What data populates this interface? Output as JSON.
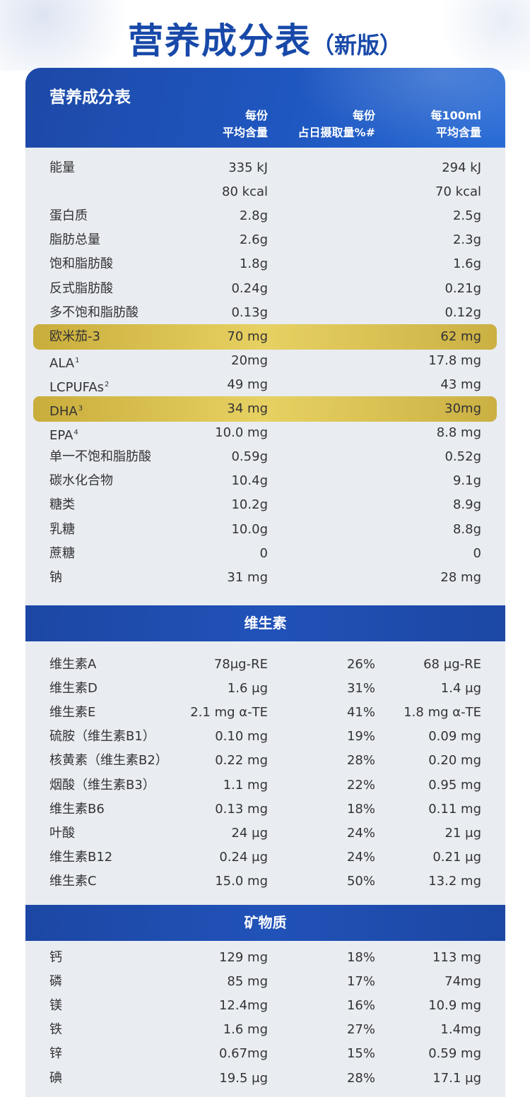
{
  "page": {
    "title": "营养成分表",
    "subtitle": "（新版）"
  },
  "header": {
    "title": "营养成分表",
    "col_serving": [
      "每份",
      "平均含量"
    ],
    "col_pct": [
      "每份",
      "占日摄取量%#"
    ],
    "col_per100": [
      "每100ml",
      "平均含量"
    ]
  },
  "sections": [
    {
      "title": "",
      "rows": [
        {
          "name": "能量",
          "sup": "",
          "serving": "335 kJ",
          "pct": "",
          "per100": "294 kJ"
        },
        {
          "name": "",
          "sup": "",
          "serving": "80 kcal",
          "pct": "",
          "per100": "70 kcal"
        },
        {
          "name": "蛋白质",
          "sup": "",
          "serving": "2.8g",
          "pct": "",
          "per100": "2.5g"
        },
        {
          "name": "脂肪总量",
          "sup": "",
          "serving": "2.6g",
          "pct": "",
          "per100": "2.3g"
        },
        {
          "name": "饱和脂肪酸",
          "sup": "",
          "serving": "1.8g",
          "pct": "",
          "per100": "1.6g"
        },
        {
          "name": "反式脂肪酸",
          "sup": "",
          "serving": "0.24g",
          "pct": "",
          "per100": "0.21g"
        },
        {
          "name": "多不饱和脂肪酸",
          "sup": "",
          "serving": "0.13g",
          "pct": "",
          "per100": "0.12g"
        },
        {
          "name": "欧米茄-3",
          "sup": "",
          "serving": "70 mg",
          "pct": "",
          "per100": "62 mg",
          "highlight": true
        },
        {
          "name": "ALA",
          "sup": "1",
          "serving": "20mg",
          "pct": "",
          "per100": "17.8 mg"
        },
        {
          "name": "LCPUFAs",
          "sup": "2",
          "serving": "49 mg",
          "pct": "",
          "per100": "43 mg"
        },
        {
          "name": "DHA",
          "sup": "3",
          "serving": "34 mg",
          "pct": "",
          "per100": "30mg",
          "highlight": true
        },
        {
          "name": "EPA",
          "sup": "4",
          "serving": "10.0 mg",
          "pct": "",
          "per100": "8.8 mg"
        },
        {
          "name": "单一不饱和脂肪酸",
          "sup": "",
          "serving": "0.59g",
          "pct": "",
          "per100": "0.52g"
        },
        {
          "name": "碳水化合物",
          "sup": "",
          "serving": "10.4g",
          "pct": "",
          "per100": "9.1g"
        },
        {
          "name": "糖类",
          "sup": "",
          "serving": "10.2g",
          "pct": "",
          "per100": "8.9g"
        },
        {
          "name": "乳糖",
          "sup": "",
          "serving": "10.0g",
          "pct": "",
          "per100": "8.8g"
        },
        {
          "name": "蔗糖",
          "sup": "",
          "serving": "0",
          "pct": "",
          "per100": "0"
        },
        {
          "name": "钠",
          "sup": "",
          "serving": "31 mg",
          "pct": "",
          "per100": "28 mg"
        }
      ]
    },
    {
      "title": "维生素",
      "rows": [
        {
          "name": "维生素A",
          "sup": "",
          "serving": "78μg-RE",
          "pct": "26%",
          "per100": "68 μg-RE"
        },
        {
          "name": "维生素D",
          "sup": "",
          "serving": "1.6 μg",
          "pct": "31%",
          "per100": "1.4 μg"
        },
        {
          "name": "维生素E",
          "sup": "",
          "serving": "2.1 mg α-TE",
          "pct": "41%",
          "per100": "1.8 mg α-TE"
        },
        {
          "name": "硫胺（维生素B1）",
          "sup": "",
          "serving": "0.10 mg",
          "pct": "19%",
          "per100": "0.09 mg"
        },
        {
          "name": "核黄素（维生素B2）",
          "sup": "",
          "serving": "0.22 mg",
          "pct": "28%",
          "per100": "0.20 mg"
        },
        {
          "name": "烟酸（维生素B3）",
          "sup": "",
          "serving": "1.1 mg",
          "pct": "22%",
          "per100": "0.95 mg"
        },
        {
          "name": "维生素B6",
          "sup": "",
          "serving": "0.13 mg",
          "pct": "18%",
          "per100": "0.11 mg"
        },
        {
          "name": "叶酸",
          "sup": "",
          "serving": "24 μg",
          "pct": "24%",
          "per100": "21 μg"
        },
        {
          "name": "维生素B12",
          "sup": "",
          "serving": "0.24 μg",
          "pct": "24%",
          "per100": "0.21 μg"
        },
        {
          "name": "维生素C",
          "sup": "",
          "serving": "15.0 mg",
          "pct": "50%",
          "per100": "13.2 mg"
        }
      ]
    },
    {
      "title": "矿物质",
      "rows": [
        {
          "name": "钙",
          "sup": "",
          "serving": "129 mg",
          "pct": "18%",
          "per100": "113 mg"
        },
        {
          "name": "磷",
          "sup": "",
          "serving": "85 mg",
          "pct": "17%",
          "per100": "74mg"
        },
        {
          "name": "镁",
          "sup": "",
          "serving": "12.4mg",
          "pct": "16%",
          "per100": "10.9 mg"
        },
        {
          "name": "铁",
          "sup": "",
          "serving": "1.6 mg",
          "pct": "27%",
          "per100": "1.4mg"
        },
        {
          "name": "锌",
          "sup": "",
          "serving": "0.67mg",
          "pct": "15%",
          "per100": "0.59 mg"
        },
        {
          "name": "碘",
          "sup": "",
          "serving": "19.5 μg",
          "pct": "28%",
          "per100": "17.1 μg"
        }
      ]
    }
  ],
  "colors": {
    "brand_blue": "#1849a9",
    "band_blue": "#1f4fb3",
    "highlight_gold": "#dcc24f",
    "card_bg": "#e9ecf1"
  }
}
